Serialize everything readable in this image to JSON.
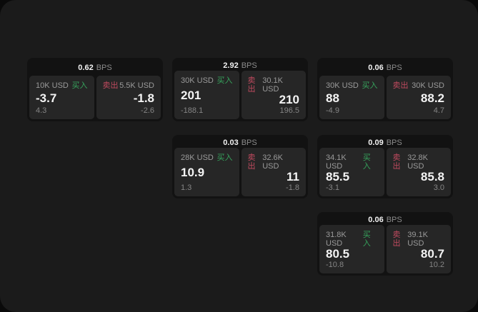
{
  "labels": {
    "bps": "BPS",
    "buy": "买入",
    "sell": "卖出"
  },
  "colors": {
    "backdrop": "#0a0a0a",
    "window_bg": "#1b1b1b",
    "card_bg": "#121212",
    "panel_bg": "#262626",
    "buy_green": "#36a35c",
    "sell_red": "#c04a5f",
    "text_primary": "#f4f4f4",
    "text_muted": "#8c8c8c"
  },
  "cards": [
    {
      "bps": "0.62",
      "buy": {
        "amount": "10K USD",
        "price": "-3.7",
        "delta": "4.3"
      },
      "sell": {
        "amount": "5.5K USD",
        "price": "-1.8",
        "delta": "-2.6"
      }
    },
    {
      "bps": "2.92",
      "buy": {
        "amount": "30K USD",
        "price": "201",
        "delta": "-188.1"
      },
      "sell": {
        "amount": "30.1K USD",
        "price": "210",
        "delta": "196.5"
      }
    },
    {
      "bps": "0.06",
      "buy": {
        "amount": "30K USD",
        "price": "88",
        "delta": "-4.9"
      },
      "sell": {
        "amount": "30K USD",
        "price": "88.2",
        "delta": "4.7"
      }
    },
    {
      "bps": "0.03",
      "buy": {
        "amount": "28K USD",
        "price": "10.9",
        "delta": "1.3"
      },
      "sell": {
        "amount": "32.6K USD",
        "price": "11",
        "delta": "-1.8"
      }
    },
    {
      "bps": "0.09",
      "buy": {
        "amount": "34.1K USD",
        "price": "85.5",
        "delta": "-3.1"
      },
      "sell": {
        "amount": "32.8K USD",
        "price": "85.8",
        "delta": "3.0"
      }
    },
    {
      "bps": "0.06",
      "buy": {
        "amount": "31.8K USD",
        "price": "80.5",
        "delta": "-10.8"
      },
      "sell": {
        "amount": "39.1K USD",
        "price": "80.7",
        "delta": "10.2"
      }
    }
  ]
}
